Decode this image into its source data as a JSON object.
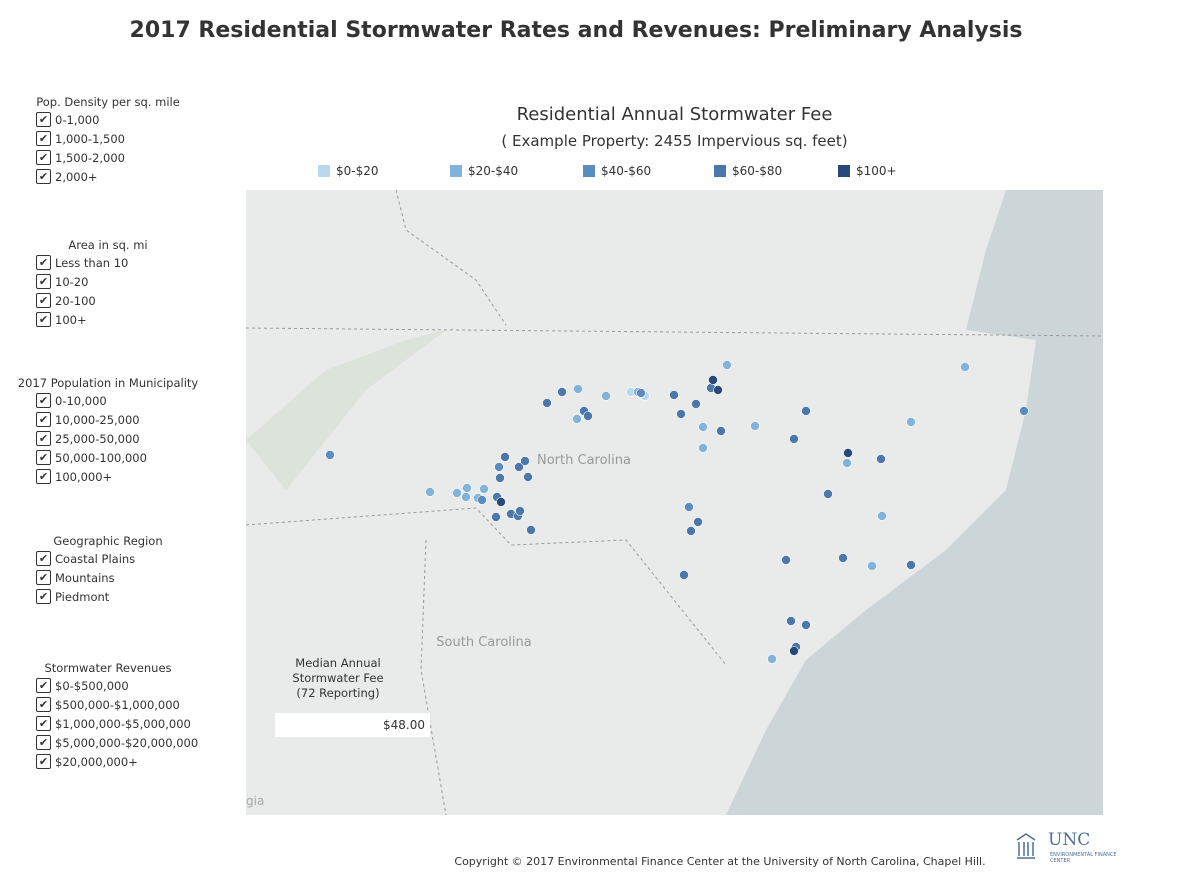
{
  "header": {
    "title": "2017 Residential Stormwater Rates and Revenues: Preliminary Analysis"
  },
  "filters": [
    {
      "title": "Pop. Density per sq. mile",
      "options": [
        "0-1,000",
        "1,000-1,500",
        "1,500-2,000",
        "2,000+"
      ]
    },
    {
      "title": "Area in sq. mi",
      "options": [
        "Less than 10",
        "10-20",
        "20-100",
        "100+"
      ]
    },
    {
      "title": "2017 Population in Municipality",
      "options": [
        "0-10,000",
        "10,000-25,000",
        "25,000-50,000",
        "50,000-100,000",
        "100,000+"
      ]
    },
    {
      "title": "Geographic Region",
      "options": [
        "Coastal Plains",
        "Mountains",
        "Piedmont"
      ]
    },
    {
      "title": "Stormwater Revenues",
      "options": [
        "$0-$500,000",
        "$500,000-$1,000,000",
        "$1,000,000-$5,000,000",
        "$5,000,000-$20,000,000",
        "$20,000,000+"
      ]
    }
  ],
  "map": {
    "title": "Residential Annual Stormwater Fee",
    "subtitle": "( Example Property: 2455 Impervious sq. feet)",
    "legend": [
      {
        "label": "$0-$20",
        "color": "#b9d7ee"
      },
      {
        "label": "$20-$40",
        "color": "#82b3da"
      },
      {
        "label": "$40-$60",
        "color": "#5b8cc0"
      },
      {
        "label": "$60-$80",
        "color": "#4b77ab"
      },
      {
        "label": "$100+",
        "color": "#284a78"
      }
    ],
    "place_labels": [
      "North Carolina",
      "South Carolina",
      "gia"
    ]
  },
  "median": {
    "label": "Median Annual Stormwater Fee (72 Reporting)",
    "value": "$48.00"
  },
  "footer": {
    "copyright": "Copyright © 2017 Environmental Finance Center at the University of North Carolina, Chapel Hill.",
    "logo": "UNC",
    "logo_sub": "ENVIRONMENTAL FINANCE CENTER"
  }
}
